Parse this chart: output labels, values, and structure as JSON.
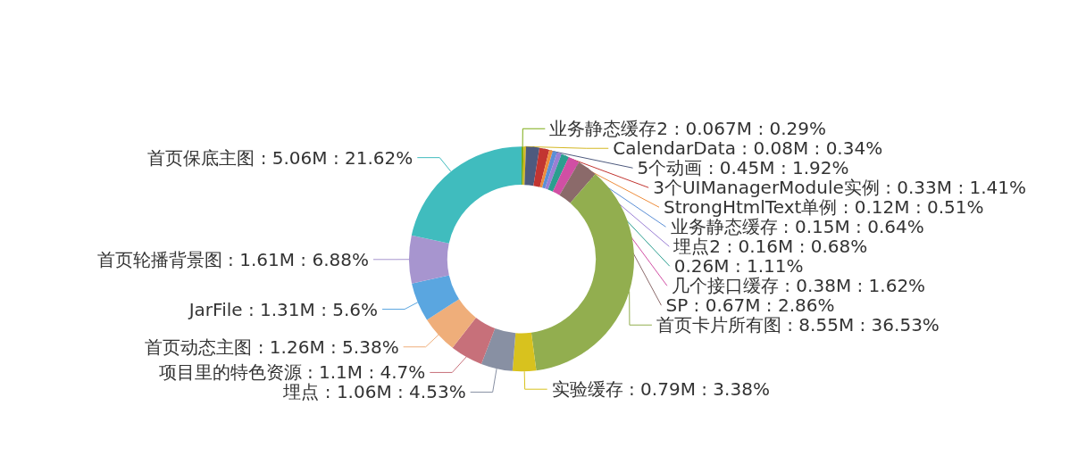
{
  "chart_data": {
    "type": "donut",
    "categories": [
      "业务静态缓存2 : 0.067M : 0.29%",
      "CalendarData : 0.08M : 0.34%",
      "5个动画 : 0.45M : 1.92%",
      "3个UIManagerModule实例 : 0.33M : 1.41%",
      "StrongHtmlText单例 : 0.12M : 0.51%",
      "业务静态缓存 : 0.15M : 0.64%",
      "埋点2 : 0.16M : 0.68%",
      "0.26M : 1.11%",
      "几个接口缓存 : 0.38M : 1.62%",
      "SP : 0.67M : 2.86%",
      "首页卡片所有图 : 8.55M : 36.53%",
      "实验缓存 : 0.79M : 3.38%",
      "埋点 : 1.06M : 4.53%",
      "项目里的特色资源 : 1.1M : 4.7%",
      "首页动态主图 : 1.26M : 5.38%",
      "JarFile : 1.31M : 5.6%",
      "首页轮播背景图 : 1.61M : 6.88%",
      "首页保底主图 : 5.06M : 21.62%"
    ],
    "values": [
      0.29,
      0.34,
      1.92,
      1.41,
      0.51,
      0.64,
      0.68,
      1.11,
      1.62,
      2.86,
      36.53,
      3.38,
      4.53,
      4.7,
      5.38,
      5.6,
      6.88,
      21.62
    ],
    "colors": [
      "#7cab13",
      "#d4b722",
      "#4e5a7e",
      "#c23531",
      "#ee8d3c",
      "#5b8fd6",
      "#9b7fd4",
      "#2b9e8f",
      "#d14fa4",
      "#8b6a6a",
      "#92ae4f",
      "#d8c21e",
      "#8890a3",
      "#c7707a",
      "#efae7a",
      "#5aa6e0",
      "#a795cf",
      "#40bcbe"
    ]
  }
}
